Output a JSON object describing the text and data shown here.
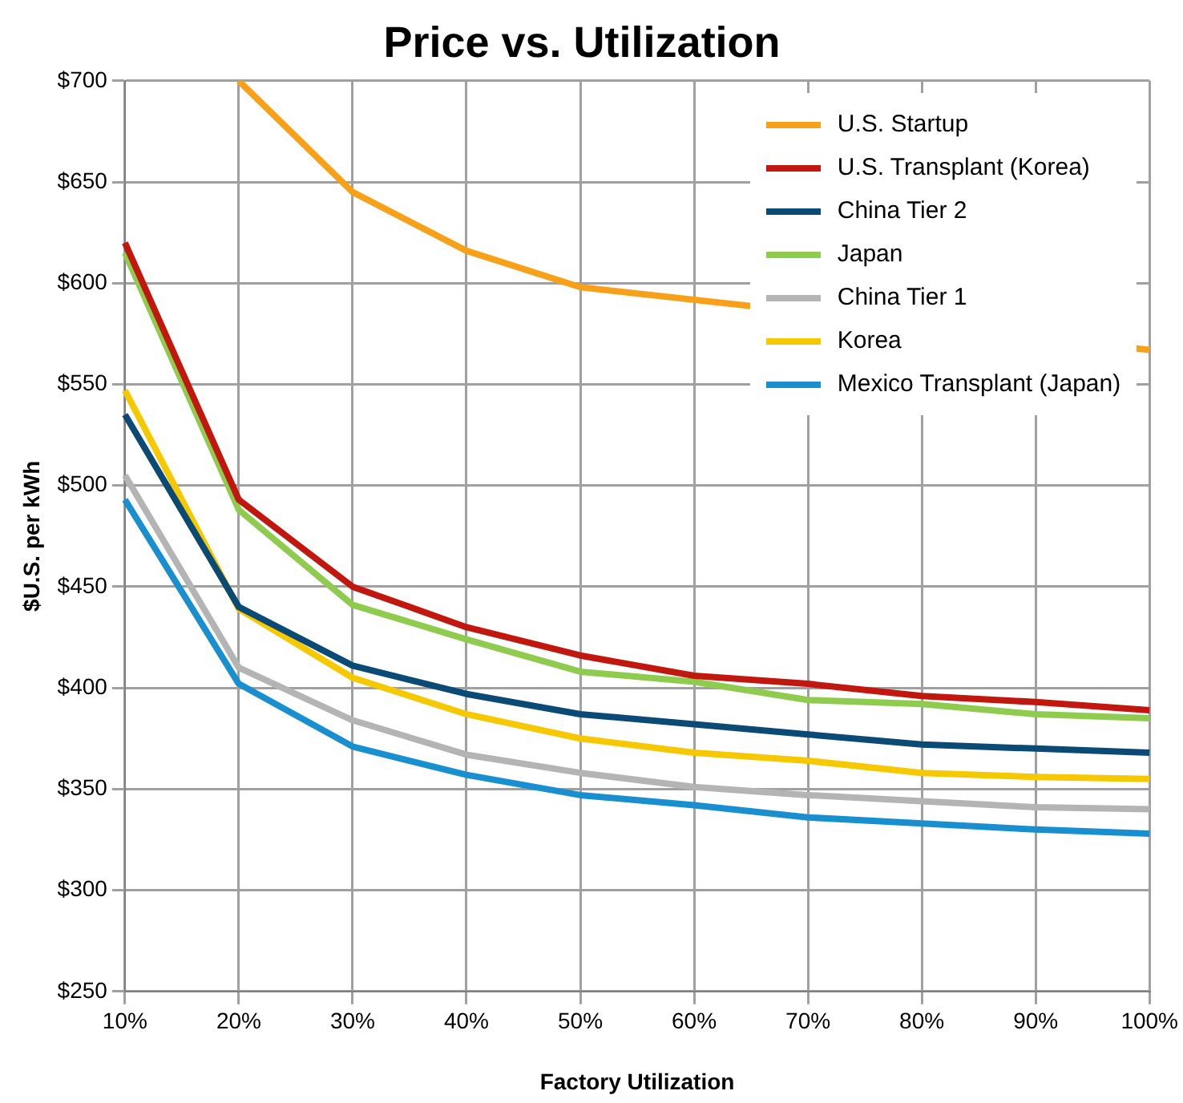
{
  "chart_data": {
    "type": "line",
    "title": "Price vs. Utilization",
    "xlabel": "Factory Utilization",
    "ylabel": "$U.S. per kWh",
    "categories": [
      "10%",
      "20%",
      "30%",
      "40%",
      "50%",
      "60%",
      "70%",
      "80%",
      "90%",
      "100%"
    ],
    "series": [
      {
        "name": "U.S. Startup",
        "color": "#f7a11a",
        "values": [
          null,
          700,
          645,
          616,
          598,
          null,
          null,
          null,
          null,
          567
        ]
      },
      {
        "name": "U.S. Transplant (Korea)",
        "color": "#c0170f",
        "values": [
          620,
          493,
          450,
          430,
          416,
          406,
          402,
          396,
          393,
          389
        ]
      },
      {
        "name": "China Tier 2",
        "color": "#0b4a74",
        "values": [
          535,
          440,
          411,
          397,
          387,
          382,
          377,
          372,
          370,
          368
        ]
      },
      {
        "name": "Japan",
        "color": "#8fcb4e",
        "values": [
          615,
          488,
          441,
          424,
          408,
          403,
          394,
          392,
          387,
          385
        ]
      },
      {
        "name": "China Tier 1",
        "color": "#b4b4b4",
        "values": [
          505,
          410,
          384,
          367,
          358,
          351,
          347,
          344,
          341,
          340
        ]
      },
      {
        "name": "Korea",
        "color": "#f6c800",
        "values": [
          547,
          439,
          405,
          387,
          375,
          368,
          364,
          358,
          356,
          355
        ]
      },
      {
        "name": "Mexico Transplant (Japan)",
        "color": "#1a8fd0",
        "values": [
          493,
          402,
          371,
          357,
          347,
          342,
          336,
          333,
          330,
          328
        ]
      }
    ],
    "ylim": [
      250,
      700
    ],
    "yticks": [
      {
        "value": 250,
        "label": "$250"
      },
      {
        "value": 300,
        "label": "$300"
      },
      {
        "value": 350,
        "label": "$350"
      },
      {
        "value": 400,
        "label": "$400"
      },
      {
        "value": 450,
        "label": "$450"
      },
      {
        "value": 500,
        "label": "$500"
      },
      {
        "value": 550,
        "label": "$550"
      },
      {
        "value": 600,
        "label": "$600"
      },
      {
        "value": 650,
        "label": "$650"
      },
      {
        "value": 700,
        "label": "$700"
      }
    ],
    "grid": true,
    "legend": "top right",
    "marker": "none",
    "line_style": "solid"
  }
}
